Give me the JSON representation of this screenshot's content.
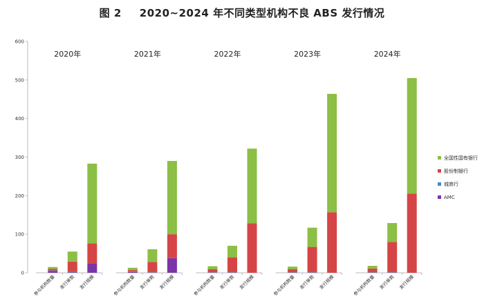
{
  "figure": {
    "number": "图 2",
    "title": "2020~2024 年不同类型机构不良 ABS 发行情况"
  },
  "colors": {
    "全国性国有银行": "#8bbf45",
    "股份制银行": "#d64545",
    "城商行": "#3c8fd0",
    "AMC": "#7a35a8",
    "axis": "#bbbbbb"
  },
  "chart_data": {
    "type": "bar",
    "stacked": true,
    "ylim": [
      0,
      600
    ],
    "yticks": [
      0,
      100,
      200,
      300,
      400,
      500,
      600
    ],
    "legend_position": "right",
    "series_order": [
      "AMC",
      "城商行",
      "股份制银行",
      "全国性国有银行"
    ],
    "legend": [
      "全国性国有银行",
      "股份制银行",
      "城商行",
      "AMC"
    ],
    "categories": [
      "参与机构数量",
      "发行单数",
      "发行规模"
    ],
    "groups": [
      {
        "year": "2020年",
        "bars": [
          {
            "category": "参与机构数量",
            "AMC": 5,
            "城商行": 1,
            "股份制银行": 4,
            "全国性国有银行": 5
          },
          {
            "category": "发行单数",
            "AMC": 1,
            "城商行": 1,
            "股份制银行": 27,
            "全国性国有银行": 26
          },
          {
            "category": "发行规模",
            "AMC": 24,
            "城商行": 0,
            "股份制银行": 52,
            "全国性国有银行": 207
          }
        ]
      },
      {
        "year": "2021年",
        "bars": [
          {
            "category": "参与机构数量",
            "AMC": 2,
            "城商行": 1,
            "股份制银行": 4,
            "全国性国有银行": 6
          },
          {
            "category": "发行单数",
            "AMC": 0,
            "城商行": 1,
            "股份制银行": 27,
            "全国性国有银行": 33
          },
          {
            "category": "发行规模",
            "AMC": 38,
            "城商行": 0,
            "股份制银行": 62,
            "全国性国有银行": 190
          }
        ]
      },
      {
        "year": "2022年",
        "bars": [
          {
            "category": "参与机构数量",
            "AMC": 0,
            "城商行": 1,
            "股份制银行": 8,
            "全国性国有银行": 8
          },
          {
            "category": "发行单数",
            "AMC": 0,
            "城商行": 1,
            "股份制银行": 39,
            "全国性国有银行": 30
          },
          {
            "category": "发行规模",
            "AMC": 0,
            "城商行": 0,
            "股份制银行": 128,
            "全国性国有银行": 194
          }
        ]
      },
      {
        "year": "2023年",
        "bars": [
          {
            "category": "参与机构数量",
            "AMC": 0,
            "城商行": 1,
            "股份制银行": 8,
            "全国性国有银行": 7
          },
          {
            "category": "发行单数",
            "AMC": 0,
            "城商行": 1,
            "股份制银行": 66,
            "全国性国有银行": 50
          },
          {
            "category": "发行规模",
            "AMC": 0,
            "城商行": 0,
            "股份制银行": 157,
            "全国性国有银行": 307
          }
        ]
      },
      {
        "year": "2024年",
        "bars": [
          {
            "category": "参与机构数量",
            "AMC": 0,
            "城商行": 1,
            "股份制银行": 10,
            "全国性国有银行": 7
          },
          {
            "category": "发行单数",
            "AMC": 0,
            "城商行": 1,
            "股份制银行": 79,
            "全国性国有银行": 49
          },
          {
            "category": "发行规模",
            "AMC": 0,
            "城商行": 0,
            "股份制银行": 205,
            "全国性国有银行": 300
          }
        ]
      }
    ]
  }
}
